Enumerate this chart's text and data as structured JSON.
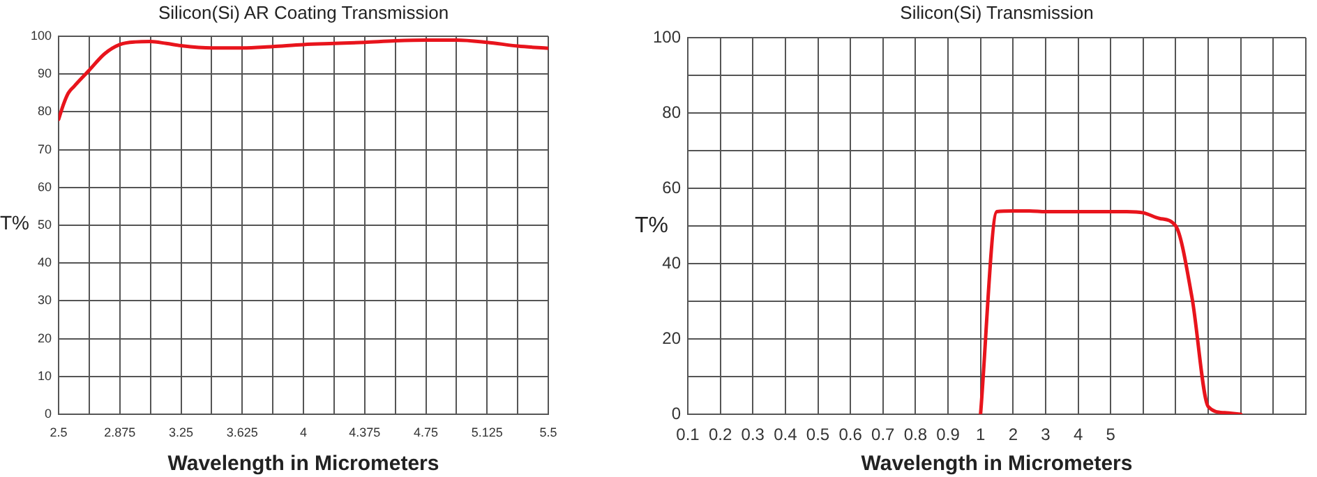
{
  "chart_data": [
    {
      "type": "line",
      "title": "Silicon(Si) AR Coating Transmission",
      "xlabel": "Wavelength in Micrometers",
      "ylabel": "T%",
      "grid": true,
      "xlim": [
        2.5,
        5.5
      ],
      "xticks": [
        2.5,
        {
          "value": 2.6875,
          "label": null
        },
        2.875,
        {
          "value": 3.0625,
          "label": null
        },
        3.25,
        {
          "value": 3.4375,
          "label": null
        },
        3.625,
        {
          "value": 3.8125,
          "label": null
        },
        4,
        {
          "value": 4.1875,
          "label": null
        },
        4.375,
        {
          "value": 4.5625,
          "label": null
        },
        4.75,
        {
          "value": 4.9375,
          "label": null
        },
        5.125,
        {
          "value": 5.3125,
          "label": null
        },
        5.5
      ],
      "ylim": [
        0,
        100
      ],
      "yticks": [
        0,
        10,
        20,
        30,
        40,
        50,
        60,
        70,
        80,
        90,
        100
      ],
      "series": [
        {
          "color": "#e8141c",
          "x": [
            2.5,
            2.53,
            2.56,
            2.594,
            2.6875,
            2.78,
            2.875,
            2.97,
            3.0625,
            3.16,
            3.25,
            3.4375,
            3.625,
            3.8125,
            4,
            4.1875,
            4.375,
            4.5625,
            4.75,
            4.9375,
            5.125,
            5.3125,
            5.5
          ],
          "values": [
            78,
            82,
            85,
            86.7,
            91,
            95.3,
            97.8,
            98.5,
            98.6,
            98.1,
            97.5,
            96.9,
            96.9,
            97.3,
            97.8,
            98.1,
            98.4,
            98.8,
            99,
            99,
            98.4,
            97.4,
            96.8
          ]
        }
      ]
    },
    {
      "type": "line",
      "title": "Silicon(Si) Transmission",
      "xlabel": "Wavelength in Micrometers",
      "ylabel": "T%",
      "grid": true,
      "categories": [
        "0.1",
        null,
        "0.2",
        null,
        "0.3",
        null,
        "0.4",
        null,
        "0.5",
        null,
        "0.6",
        null,
        "0.7",
        null,
        "0.8",
        null,
        "0.9",
        null,
        "1",
        null,
        "2",
        null,
        "3",
        null,
        "4",
        null,
        "5",
        null,
        null,
        null,
        null,
        null,
        null,
        null,
        null,
        null,
        null,
        null,
        null
      ],
      "ylim": [
        0,
        100
      ],
      "yticks": [
        0,
        {
          "value": 10,
          "label": null
        },
        20,
        {
          "value": 30,
          "label": null
        },
        40,
        {
          "value": 50,
          "label": null
        },
        60,
        {
          "value": 70,
          "label": null
        },
        80,
        {
          "value": 90,
          "label": null
        },
        100
      ],
      "series": [
        {
          "color": "#e8141c",
          "values": [
            null,
            null,
            null,
            null,
            null,
            null,
            null,
            null,
            null,
            null,
            null,
            null,
            null,
            null,
            null,
            null,
            null,
            null,
            0,
            53.8,
            54,
            54,
            53.8,
            53.8,
            53.8,
            53.8,
            53.8,
            53.8,
            53.5,
            52,
            50,
            31,
            2,
            0.4,
            0,
            null,
            null,
            null,
            null
          ]
        }
      ]
    }
  ]
}
